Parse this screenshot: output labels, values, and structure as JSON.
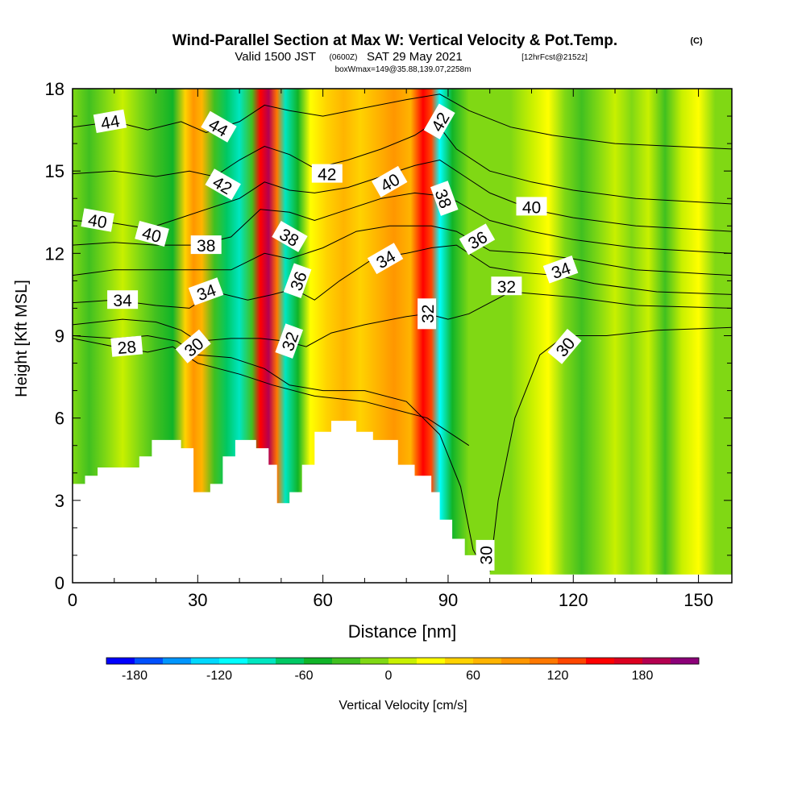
{
  "title": {
    "main": "Wind-Parallel Section at Max W: Vertical Velocity & Pot.Temp.",
    "copyright": "(C)",
    "valid_prefix": "Valid 1500 JST",
    "valid_utc": "(0600Z)",
    "valid_date": "SAT 29 May 2021",
    "forecast": "[12hrFcst@2152z]",
    "box": "boxWmax=149@35.88,139.07,2258m"
  },
  "chart_data": {
    "type": "heatmap",
    "xlabel": "Distance [nm]",
    "ylabel": "Height [Kft MSL]",
    "xlim": [
      0,
      158
    ],
    "ylim": [
      0,
      18
    ],
    "x_ticks": [
      "0",
      "30",
      "60",
      "90",
      "120",
      "150"
    ],
    "y_ticks": [
      "0",
      "3",
      "6",
      "9",
      "12",
      "15",
      "18"
    ],
    "colorbar": {
      "label": "Vertical Velocity [cm/s]",
      "ticks": [
        "-180",
        "-120",
        "-60",
        "0",
        "60",
        "120",
        "180"
      ],
      "min": -200,
      "max": 220,
      "step": 20,
      "colors": [
        "#0000ff",
        "#0050ff",
        "#0096ff",
        "#00d8ff",
        "#00ffff",
        "#00e6c0",
        "#00c864",
        "#10b428",
        "#40c020",
        "#80d814",
        "#c8f000",
        "#ffff00",
        "#ffd200",
        "#ffb400",
        "#ff9600",
        "#ff7800",
        "#ff4600",
        "#ff0000",
        "#dc0020",
        "#b40050",
        "#8c0078"
      ]
    },
    "vertical_velocity_columns": [
      {
        "x": 0,
        "w": -20
      },
      {
        "x": 4,
        "w": -40
      },
      {
        "x": 8,
        "w": -10
      },
      {
        "x": 12,
        "w": 0
      },
      {
        "x": 16,
        "w": -10
      },
      {
        "x": 20,
        "w": -30
      },
      {
        "x": 24,
        "w": -50
      },
      {
        "x": 27,
        "w": 40
      },
      {
        "x": 29,
        "w": 80
      },
      {
        "x": 31,
        "w": 60
      },
      {
        "x": 34,
        "w": -40
      },
      {
        "x": 37,
        "w": -70
      },
      {
        "x": 40,
        "w": -90
      },
      {
        "x": 43,
        "w": -40
      },
      {
        "x": 45,
        "w": 150
      },
      {
        "x": 47,
        "w": 180
      },
      {
        "x": 49,
        "w": 110
      },
      {
        "x": 51,
        "w": -100
      },
      {
        "x": 54,
        "w": -50
      },
      {
        "x": 57,
        "w": 20
      },
      {
        "x": 61,
        "w": 40
      },
      {
        "x": 65,
        "w": 60
      },
      {
        "x": 69,
        "w": 40
      },
      {
        "x": 73,
        "w": 60
      },
      {
        "x": 77,
        "w": 80
      },
      {
        "x": 81,
        "w": 60
      },
      {
        "x": 84,
        "w": 150
      },
      {
        "x": 86,
        "w": 120
      },
      {
        "x": 88,
        "w": -110
      },
      {
        "x": 91,
        "w": -60
      },
      {
        "x": 95,
        "w": -20
      },
      {
        "x": 100,
        "w": -10
      },
      {
        "x": 105,
        "w": -20
      },
      {
        "x": 110,
        "w": 0
      },
      {
        "x": 114,
        "w": 20
      },
      {
        "x": 118,
        "w": -20
      },
      {
        "x": 122,
        "w": -30
      },
      {
        "x": 126,
        "w": -10
      },
      {
        "x": 130,
        "w": 0
      },
      {
        "x": 134,
        "w": -20
      },
      {
        "x": 138,
        "w": 0
      },
      {
        "x": 142,
        "w": -30
      },
      {
        "x": 146,
        "w": 10
      },
      {
        "x": 150,
        "w": 30
      },
      {
        "x": 154,
        "w": -10
      },
      {
        "x": 158,
        "w": -20
      }
    ],
    "terrain": [
      {
        "x": 0,
        "h": 3.6
      },
      {
        "x": 3,
        "h": 3.9
      },
      {
        "x": 6,
        "h": 4.2
      },
      {
        "x": 16,
        "h": 4.6
      },
      {
        "x": 19,
        "h": 5.2
      },
      {
        "x": 26,
        "h": 4.9
      },
      {
        "x": 29,
        "h": 3.3
      },
      {
        "x": 33,
        "h": 3.6
      },
      {
        "x": 36,
        "h": 4.6
      },
      {
        "x": 39,
        "h": 5.2
      },
      {
        "x": 44,
        "h": 4.9
      },
      {
        "x": 47,
        "h": 4.3
      },
      {
        "x": 49,
        "h": 2.9
      },
      {
        "x": 52,
        "h": 3.3
      },
      {
        "x": 55,
        "h": 4.3
      },
      {
        "x": 58,
        "h": 5.5
      },
      {
        "x": 62,
        "h": 5.9
      },
      {
        "x": 68,
        "h": 5.5
      },
      {
        "x": 72,
        "h": 5.2
      },
      {
        "x": 78,
        "h": 4.3
      },
      {
        "x": 82,
        "h": 3.9
      },
      {
        "x": 86,
        "h": 3.3
      },
      {
        "x": 88,
        "h": 2.3
      },
      {
        "x": 91,
        "h": 1.6
      },
      {
        "x": 94,
        "h": 1.0
      },
      {
        "x": 97,
        "h": 0.6
      },
      {
        "x": 100,
        "h": 0.3
      },
      {
        "x": 158,
        "h": 0.3
      }
    ],
    "theta_contours": [
      {
        "label": "28",
        "lx": 13,
        "ly": 8.6,
        "ang": -5,
        "pts": [
          [
            0,
            8.9
          ],
          [
            10,
            8.6
          ],
          [
            18,
            8.4
          ],
          [
            24,
            8.6
          ],
          [
            30,
            8.0
          ],
          [
            40,
            7.6
          ],
          [
            48,
            7.2
          ],
          [
            58,
            6.8
          ],
          [
            70,
            6.6
          ],
          [
            85,
            6.0
          ],
          [
            95,
            5.0
          ]
        ]
      },
      {
        "label": "30",
        "lx": 29,
        "ly": 8.6,
        "ang": -40,
        "pts": [
          [
            0,
            9.0
          ],
          [
            10,
            8.9
          ],
          [
            18,
            9.0
          ],
          [
            25,
            8.8
          ],
          [
            30,
            8.3
          ],
          [
            38,
            8.2
          ],
          [
            46,
            7.8
          ],
          [
            52,
            7.2
          ],
          [
            60,
            7.0
          ],
          [
            70,
            7.0
          ],
          [
            80,
            6.6
          ],
          [
            88,
            5.4
          ],
          [
            93,
            3.5
          ],
          [
            96,
            1.2
          ],
          [
            99,
            0.4
          ]
        ]
      },
      {
        "label": "30",
        "lx": 99,
        "ly": 1.0,
        "ang": -90,
        "pts": []
      },
      {
        "label": "30",
        "lx": 118,
        "ly": 8.6,
        "ang": -50,
        "pts": [
          [
            100,
            0.4
          ],
          [
            102,
            3.0
          ],
          [
            106,
            6.0
          ],
          [
            112,
            8.3
          ],
          [
            118,
            9.0
          ],
          [
            128,
            9.0
          ],
          [
            140,
            9.2
          ],
          [
            158,
            9.3
          ]
        ]
      },
      {
        "label": "32",
        "lx": 52,
        "ly": 8.8,
        "ang": -70,
        "pts": [
          [
            0,
            9.4
          ],
          [
            12,
            9.6
          ],
          [
            20,
            9.5
          ],
          [
            26,
            9.2
          ],
          [
            30,
            8.8
          ],
          [
            38,
            8.9
          ],
          [
            45,
            8.9
          ],
          [
            51,
            8.8
          ],
          [
            56,
            8.6
          ],
          [
            62,
            9.1
          ],
          [
            70,
            9.4
          ],
          [
            80,
            9.7
          ],
          [
            85,
            9.8
          ],
          [
            90,
            9.6
          ],
          [
            95,
            9.8
          ],
          [
            105,
            10.6
          ],
          [
            120,
            10.4
          ],
          [
            135,
            10.1
          ],
          [
            158,
            10.0
          ]
        ]
      },
      {
        "label": "32",
        "lx": 85,
        "ly": 9.8,
        "ang": -90,
        "pts": []
      },
      {
        "label": "32",
        "lx": 104,
        "ly": 10.8,
        "ang": 0,
        "pts": []
      },
      {
        "label": "34",
        "lx": 12,
        "ly": 10.3,
        "ang": 0,
        "pts": [
          [
            0,
            10.2
          ],
          [
            10,
            10.3
          ],
          [
            20,
            10.1
          ],
          [
            28,
            10.0
          ],
          [
            34,
            10.6
          ],
          [
            42,
            10.3
          ],
          [
            48,
            10.5
          ],
          [
            53,
            10.7
          ],
          [
            58,
            10.3
          ],
          [
            64,
            11.0
          ],
          [
            72,
            11.8
          ],
          [
            80,
            12.0
          ],
          [
            86,
            12.2
          ],
          [
            92,
            12.3
          ],
          [
            100,
            11.5
          ],
          [
            108,
            11.3
          ],
          [
            116,
            11.2
          ],
          [
            125,
            10.9
          ],
          [
            140,
            10.6
          ],
          [
            158,
            10.5
          ]
        ]
      },
      {
        "label": "34",
        "lx": 32,
        "ly": 10.6,
        "ang": -20,
        "pts": []
      },
      {
        "label": "34",
        "lx": 75,
        "ly": 11.8,
        "ang": -30,
        "pts": []
      },
      {
        "label": "34",
        "lx": 117,
        "ly": 11.4,
        "ang": -20,
        "pts": []
      },
      {
        "label": "36",
        "lx": 54,
        "ly": 11.0,
        "ang": -70,
        "pts": [
          [
            0,
            11.2
          ],
          [
            10,
            11.4
          ],
          [
            20,
            11.4
          ],
          [
            30,
            11.4
          ],
          [
            38,
            11.4
          ],
          [
            46,
            12.0
          ],
          [
            52,
            11.8
          ],
          [
            60,
            12.2
          ],
          [
            68,
            12.8
          ],
          [
            76,
            13.0
          ],
          [
            86,
            13.0
          ],
          [
            92,
            12.8
          ],
          [
            100,
            12.1
          ],
          [
            110,
            12.0
          ],
          [
            120,
            11.8
          ],
          [
            135,
            11.4
          ],
          [
            158,
            11.2
          ]
        ]
      },
      {
        "label": "36",
        "lx": 97,
        "ly": 12.5,
        "ang": -30,
        "pts": []
      },
      {
        "label": "38",
        "lx": 32,
        "ly": 12.3,
        "ang": 0,
        "pts": [
          [
            0,
            12.3
          ],
          [
            10,
            12.4
          ],
          [
            20,
            12.3
          ],
          [
            30,
            12.3
          ],
          [
            38,
            12.6
          ],
          [
            45,
            13.6
          ],
          [
            52,
            13.5
          ],
          [
            58,
            13.2
          ],
          [
            66,
            13.6
          ],
          [
            74,
            14.0
          ],
          [
            82,
            14.2
          ],
          [
            88,
            14.1
          ],
          [
            92,
            13.9
          ],
          [
            100,
            13.2
          ],
          [
            110,
            12.8
          ],
          [
            120,
            12.5
          ],
          [
            135,
            12.2
          ],
          [
            158,
            12.0
          ]
        ]
      },
      {
        "label": "38",
        "lx": 52,
        "ly": 12.6,
        "ang": 30,
        "pts": []
      },
      {
        "label": "38",
        "lx": 89,
        "ly": 14.0,
        "ang": 70,
        "pts": []
      },
      {
        "label": "40",
        "lx": 6,
        "ly": 13.2,
        "ang": 10,
        "pts": [
          [
            0,
            13.2
          ],
          [
            10,
            13.1
          ],
          [
            18,
            12.9
          ],
          [
            26,
            13.3
          ],
          [
            32,
            13.6
          ],
          [
            40,
            14.0
          ],
          [
            46,
            14.6
          ],
          [
            52,
            14.3
          ],
          [
            58,
            14.2
          ],
          [
            66,
            14.4
          ],
          [
            74,
            14.8
          ],
          [
            82,
            15.2
          ],
          [
            88,
            15.4
          ],
          [
            94,
            14.8
          ],
          [
            100,
            14.2
          ],
          [
            110,
            13.6
          ],
          [
            120,
            13.3
          ],
          [
            135,
            13.0
          ],
          [
            158,
            12.8
          ]
        ]
      },
      {
        "label": "40",
        "lx": 19,
        "ly": 12.7,
        "ang": 15,
        "pts": []
      },
      {
        "label": "40",
        "lx": 76,
        "ly": 14.6,
        "ang": -30,
        "pts": []
      },
      {
        "label": "40",
        "lx": 110,
        "ly": 13.7,
        "ang": 0,
        "pts": []
      },
      {
        "label": "42",
        "lx": 36,
        "ly": 14.5,
        "ang": 30,
        "pts": [
          [
            0,
            14.9
          ],
          [
            10,
            15.0
          ],
          [
            20,
            14.8
          ],
          [
            28,
            15.0
          ],
          [
            34,
            14.8
          ],
          [
            40,
            15.4
          ],
          [
            46,
            15.9
          ],
          [
            52,
            15.6
          ],
          [
            58,
            15.1
          ],
          [
            66,
            15.4
          ],
          [
            74,
            15.8
          ],
          [
            82,
            16.3
          ],
          [
            87,
            16.8
          ],
          [
            92,
            15.8
          ],
          [
            100,
            15.0
          ],
          [
            110,
            14.6
          ],
          [
            120,
            14.3
          ],
          [
            135,
            14.0
          ],
          [
            158,
            13.8
          ]
        ]
      },
      {
        "label": "42",
        "lx": 61,
        "ly": 14.9,
        "ang": 0,
        "pts": []
      },
      {
        "label": "42",
        "lx": 88,
        "ly": 16.8,
        "ang": -60,
        "pts": []
      },
      {
        "label": "44",
        "lx": 9,
        "ly": 16.8,
        "ang": -10,
        "pts": [
          [
            0,
            16.6
          ],
          [
            10,
            16.8
          ],
          [
            18,
            16.5
          ],
          [
            26,
            16.8
          ],
          [
            32,
            16.4
          ],
          [
            40,
            16.8
          ],
          [
            46,
            17.4
          ],
          [
            52,
            17.2
          ],
          [
            60,
            17.0
          ],
          [
            70,
            17.3
          ],
          [
            80,
            17.6
          ],
          [
            88,
            17.8
          ],
          [
            95,
            17.2
          ],
          [
            105,
            16.6
          ],
          [
            115,
            16.3
          ],
          [
            130,
            16.0
          ],
          [
            158,
            15.8
          ]
        ]
      },
      {
        "label": "44",
        "lx": 35,
        "ly": 16.6,
        "ang": 30,
        "pts": []
      }
    ]
  }
}
